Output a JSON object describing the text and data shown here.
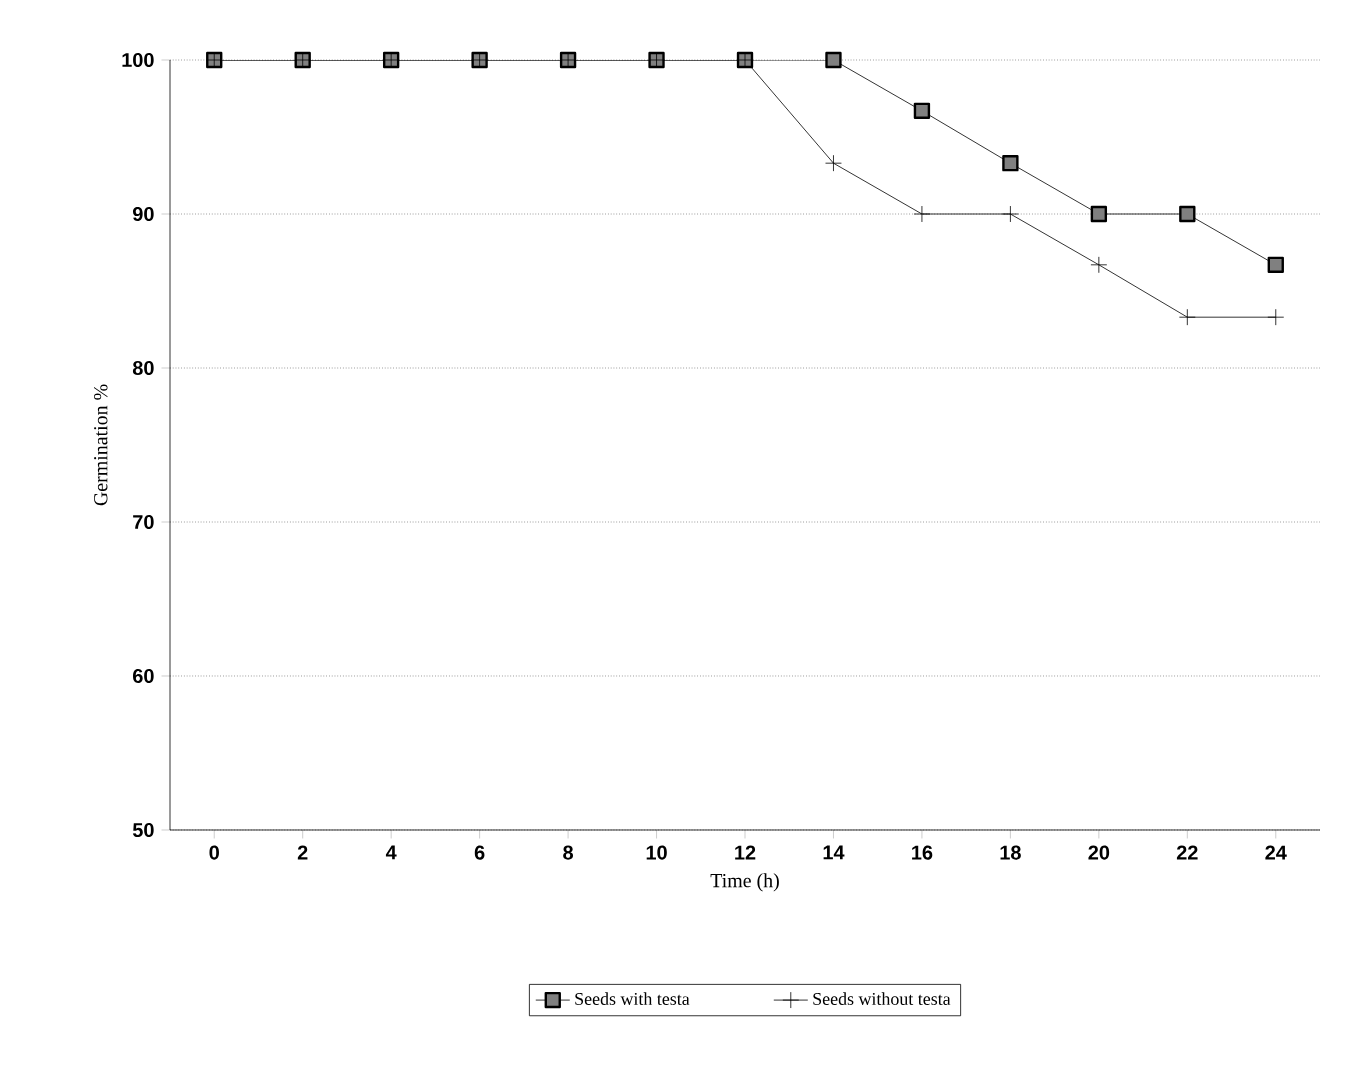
{
  "chart_data": {
    "type": "line",
    "xlabel": "Time (h)",
    "ylabel": "Germination %",
    "x": [
      0,
      2,
      4,
      6,
      8,
      10,
      12,
      14,
      16,
      18,
      20,
      22,
      24
    ],
    "series": [
      {
        "name": "Seeds with testa",
        "color": "#000000",
        "marker": "square",
        "values": [
          100,
          100,
          100,
          100,
          100,
          100,
          100,
          100,
          96.7,
          93.3,
          90,
          90,
          86.7
        ]
      },
      {
        "name": "Seeds without testa",
        "color": "#000000",
        "marker": "cross",
        "values": [
          100,
          100,
          100,
          100,
          100,
          100,
          100,
          93.3,
          90,
          90,
          86.7,
          83.3,
          83.3
        ]
      }
    ],
    "xlim": [
      -1,
      25
    ],
    "ylim": [
      50,
      100
    ],
    "xticks": [
      0,
      2,
      4,
      6,
      8,
      10,
      12,
      14,
      16,
      18,
      20,
      22,
      24
    ],
    "yticks": [
      50,
      60,
      70,
      80,
      90,
      100
    ],
    "grid": "y",
    "legend": "bottom",
    "line_style": "solid"
  }
}
